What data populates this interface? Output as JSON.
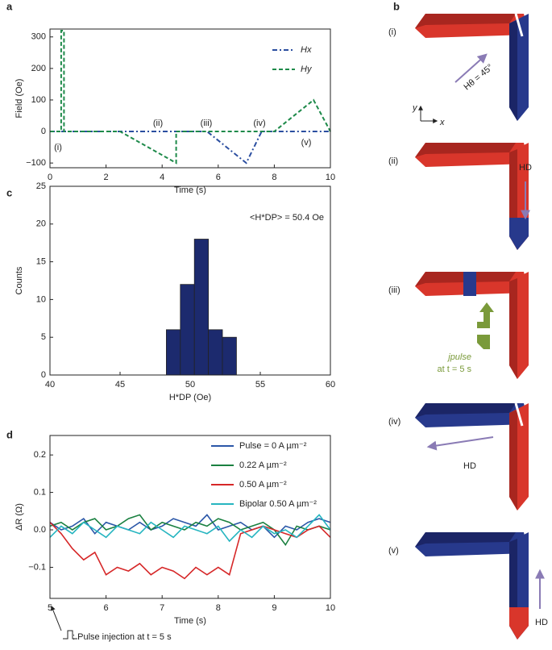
{
  "chart_data": [
    {
      "panel": "a",
      "type": "line",
      "xlabel": "Time (s)",
      "ylabel": "Field (Oe)",
      "xlim": [
        0,
        10
      ],
      "ylim": [
        -115,
        325
      ],
      "xticks": [
        0,
        2,
        4,
        6,
        8,
        10
      ],
      "yticks": [
        {
          "value": -100,
          "label": "−100"
        },
        0,
        100,
        200,
        300
      ],
      "legend": "upper right",
      "series": [
        {
          "name": "Hx",
          "color": "#2b4ea0",
          "linestyle": "dashdot",
          "x": [
            0,
            5.6,
            7,
            7.55,
            10
          ],
          "values": [
            0,
            0,
            -100,
            0,
            0
          ]
        },
        {
          "name": "Hy",
          "color": "#1e8a4a",
          "linestyle": "dashed",
          "x": [
            0,
            0.4,
            0.4,
            0.5,
            0.5,
            2.5,
            4.5,
            4.5,
            8,
            9.4,
            10
          ],
          "values": [
            0,
            0,
            320,
            320,
            0,
            0,
            -100,
            0,
            0,
            100,
            0
          ]
        }
      ],
      "annotations": [
        "(i)",
        "(ii)",
        "(iii)",
        "(iv)",
        "(v)"
      ]
    },
    {
      "panel": "c",
      "type": "histogram",
      "xlabel": "H*DP (Oe)",
      "ylabel": "Counts",
      "xlim": [
        40,
        60
      ],
      "ylim": [
        0,
        25
      ],
      "xticks": [
        40,
        45,
        50,
        55,
        60
      ],
      "yticks": [
        0,
        5,
        10,
        15,
        20,
        25
      ],
      "bins": [
        48.3,
        49.3,
        50.3,
        51.3,
        52.3,
        53.3
      ],
      "values": [
        6,
        12,
        18,
        6,
        5
      ],
      "color": "#1c2a6e",
      "annotations": [
        "<H*DP> = 50.4 Oe"
      ]
    },
    {
      "panel": "d",
      "type": "line",
      "xlabel": "Time (s)",
      "ylabel": "ΔR (Ω)",
      "xlim": [
        5,
        10
      ],
      "ylim": [
        -0.183,
        0.252
      ],
      "xticks": [
        5,
        6,
        7,
        8,
        9,
        10
      ],
      "yticks": [
        {
          "value": -0.1,
          "label": "−0.1"
        },
        {
          "value": 0,
          "label": "0.0"
        },
        0.1,
        0.2
      ],
      "legend": "upper right",
      "x": [
        5.0,
        5.2,
        5.4,
        5.6,
        5.8,
        6.0,
        6.2,
        6.4,
        6.6,
        6.8,
        7.0,
        7.2,
        7.4,
        7.6,
        7.8,
        8.0,
        8.2,
        8.4,
        8.6,
        8.8,
        9.0,
        9.2,
        9.4,
        9.6,
        9.8,
        10.0
      ],
      "series": [
        {
          "name": "Pulse = 0 A µm⁻²",
          "color": "#2b57a8",
          "values": [
            0.02,
            0.0,
            0.01,
            0.03,
            -0.01,
            0.02,
            0.01,
            0.0,
            0.02,
            0.0,
            0.01,
            0.03,
            0.02,
            0.01,
            0.04,
            0.0,
            0.01,
            0.02,
            0.0,
            0.01,
            -0.02,
            0.01,
            0.0,
            0.02,
            0.03,
            0.02
          ]
        },
        {
          "name": "0.22 A µm⁻²",
          "color": "#1a8040",
          "values": [
            0.01,
            0.02,
            0.0,
            0.02,
            0.03,
            0.0,
            0.01,
            0.03,
            0.04,
            0.0,
            0.02,
            0.01,
            0.0,
            0.02,
            0.01,
            0.03,
            0.02,
            0.0,
            0.01,
            0.02,
            0.0,
            -0.04,
            0.01,
            0.0,
            0.01,
            0.0
          ]
        },
        {
          "name": "0.50 A µm⁻²",
          "color": "#d62728",
          "values": [
            0.02,
            -0.01,
            -0.05,
            -0.08,
            -0.06,
            -0.12,
            -0.1,
            -0.11,
            -0.09,
            -0.12,
            -0.1,
            -0.11,
            -0.13,
            -0.1,
            -0.12,
            -0.1,
            -0.12,
            -0.01,
            0.0,
            0.01,
            0.0,
            -0.01,
            -0.02,
            0.0,
            0.01,
            -0.02
          ]
        },
        {
          "name": "Bipolar 0.50 A µm⁻²",
          "color": "#26b5c0",
          "values": [
            -0.02,
            0.01,
            -0.01,
            0.02,
            0.0,
            -0.02,
            0.01,
            0.0,
            -0.01,
            0.02,
            0.0,
            -0.02,
            0.01,
            0.0,
            -0.01,
            0.01,
            -0.03,
            0.0,
            -0.02,
            0.01,
            -0.01,
            0.0,
            -0.02,
            0.01,
            0.04,
            0.0
          ]
        }
      ],
      "annotations": [
        ": Pulse injection at t = 5 s"
      ]
    }
  ],
  "panel_b": {
    "label": "b",
    "steps": [
      "(i)",
      "(ii)",
      "(iii)",
      "(iv)",
      "(v)"
    ],
    "h_theta": "Hθ = 45°",
    "axis_y": "y",
    "axis_x": "x",
    "hd_ii": "HD",
    "j_pulse": "jpulse",
    "at_time": "at t = 5 s",
    "hd_iv": "HD",
    "hd_v": "HD"
  }
}
